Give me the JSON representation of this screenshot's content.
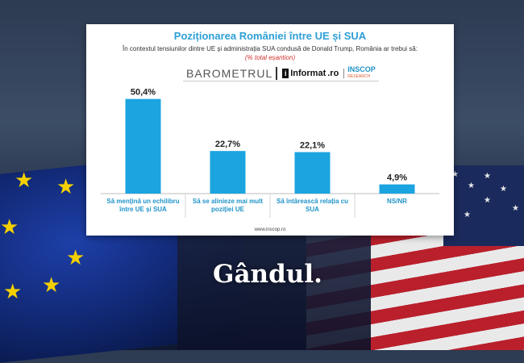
{
  "header": {
    "title": "Poziționarea României între UE și SUA",
    "subtitle": "În contextul tensiunilor dintre UE și administrația SUA condusă de Donald Trump, România ar trebui să:",
    "note": "(% total eșantion)"
  },
  "logos": {
    "barometru": "BAROMETRUL",
    "informat": "Informat",
    "informat_suffix": ".ro",
    "inscop": "INSCOP",
    "inscop_sub": "RESEARCH"
  },
  "source": "www.inscop.ro",
  "brand": "Gândul.",
  "colors": {
    "bar": "#1ba4e0",
    "title": "#2e9fd5",
    "note": "#d0312d"
  },
  "chart_data": {
    "type": "bar",
    "title": "Poziționarea României între UE și SUA",
    "categories": [
      [
        "Să mențină un echilibru",
        "între UE și SUA"
      ],
      [
        "Să se alinieze mai mult",
        "poziției UE"
      ],
      [
        "Să întărească relația cu",
        "SUA"
      ],
      [
        "NS/NR"
      ]
    ],
    "values": [
      50.4,
      22.7,
      22.1,
      4.9
    ],
    "value_labels": [
      "50,4%",
      "22,7%",
      "22,1%",
      "4,9%"
    ],
    "ylim": [
      0,
      55
    ],
    "grid": false,
    "legend": "none"
  }
}
